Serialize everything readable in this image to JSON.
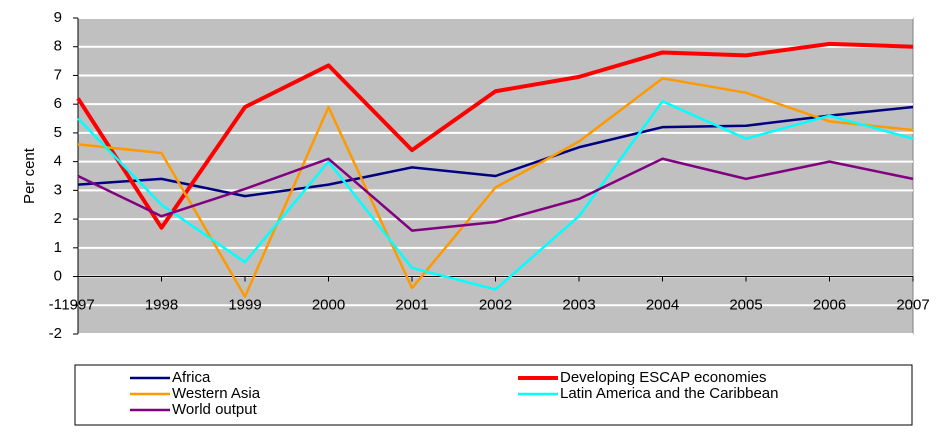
{
  "chart_data": {
    "type": "line",
    "y_label": "Per cent",
    "categories": [
      "1997",
      "1998",
      "1999",
      "2000",
      "2001",
      "2002",
      "2003",
      "2004",
      "2005",
      "2006",
      "2007"
    ],
    "ylim": [
      -2,
      9
    ],
    "yticks": [
      -2,
      -1,
      0,
      1,
      2,
      3,
      4,
      5,
      6,
      7,
      8,
      9
    ],
    "grid": true,
    "legend": "bottom",
    "series": [
      {
        "name": "Africa",
        "color": "#000080",
        "values": [
          3.2,
          3.4,
          2.8,
          3.2,
          3.8,
          3.5,
          4.5,
          5.2,
          5.25,
          5.6,
          5.9
        ]
      },
      {
        "name": "Developing ESCAP economies",
        "color": "#ff0000",
        "values": [
          6.2,
          1.7,
          5.9,
          7.35,
          4.4,
          6.45,
          6.95,
          7.8,
          7.7,
          8.1,
          8.0
        ]
      },
      {
        "name": "Western Asia",
        "color": "#ff9900",
        "values": [
          4.6,
          4.3,
          -0.7,
          5.9,
          -0.4,
          3.1,
          4.7,
          6.9,
          6.4,
          5.4,
          5.1
        ]
      },
      {
        "name": "Latin America and the Caribbean",
        "color": "#00ffff",
        "values": [
          5.5,
          2.5,
          0.5,
          4.0,
          0.3,
          -0.45,
          2.1,
          6.1,
          4.8,
          5.6,
          4.8
        ]
      },
      {
        "name": "World output",
        "color": "#800080",
        "values": [
          3.5,
          2.1,
          3.05,
          4.1,
          1.6,
          1.9,
          2.7,
          4.1,
          3.4,
          4.0,
          3.4
        ]
      }
    ]
  }
}
